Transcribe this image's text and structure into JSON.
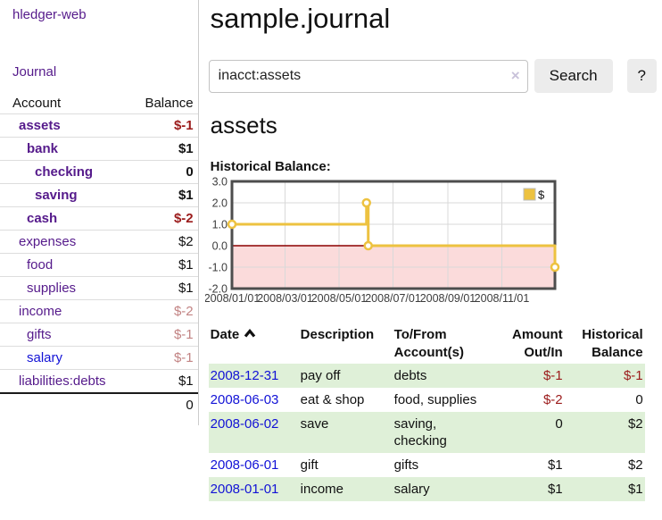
{
  "colors": {
    "link_purple": "#551a8b",
    "link_blue": "#1212d6",
    "negative_red": "#9b1b1b",
    "negative_red_muted": "#c28383",
    "stripe_green": "#dff0d8"
  },
  "sidebar": {
    "app_title": "hledger-web",
    "journal_link": "Journal",
    "accounts_table": {
      "headers": {
        "account": "Account",
        "balance": "Balance"
      },
      "rows": [
        {
          "name": "assets",
          "balance": "$-1",
          "depth": 1,
          "bold": true,
          "negative": true
        },
        {
          "name": "bank",
          "balance": "$1",
          "depth": 2,
          "bold": true
        },
        {
          "name": "checking",
          "balance": "0",
          "depth": 3,
          "bold": true
        },
        {
          "name": "saving",
          "balance": "$1",
          "depth": 3,
          "bold": true
        },
        {
          "name": "cash",
          "balance": "$-2",
          "depth": 2,
          "bold": true,
          "negative": true
        },
        {
          "name": "expenses",
          "balance": "$2",
          "depth": 1
        },
        {
          "name": "food",
          "balance": "$1",
          "depth": 2
        },
        {
          "name": "supplies",
          "balance": "$1",
          "depth": 2
        },
        {
          "name": "income",
          "balance": "$-2",
          "depth": 1,
          "negative": true,
          "muted": true
        },
        {
          "name": "gifts",
          "balance": "$-1",
          "depth": 2,
          "negative": true,
          "muted": true
        },
        {
          "name": "salary",
          "balance": "$-1",
          "depth": 2,
          "negative": true,
          "muted": true,
          "unvisited": true
        },
        {
          "name": "liabilities:debts",
          "balance": "$1",
          "depth": 1
        }
      ],
      "total": "0"
    }
  },
  "main": {
    "title": "sample.journal",
    "search": {
      "value": "inacct:assets",
      "clear_icon": "×",
      "button": "Search",
      "help_button": "?"
    },
    "account_heading": "assets",
    "chart_label": "Historical Balance:"
  },
  "chart_data": {
    "type": "line",
    "step": true,
    "title": "Historical Balance",
    "series": [
      {
        "name": "$",
        "color": "#edc240",
        "points": [
          [
            "2008-01-01",
            1
          ],
          [
            "2008-06-01",
            2
          ],
          [
            "2008-06-03",
            0
          ],
          [
            "2008-12-31",
            -1
          ]
        ]
      }
    ],
    "xlim": [
      "2008-01-01",
      "2008-12-31"
    ],
    "ylim": [
      -2.0,
      3.0
    ],
    "yticks": [
      3.0,
      2.0,
      1.0,
      0.0,
      -1.0,
      -2.0
    ],
    "xticks": [
      {
        "date": "2008-01-01",
        "label": "2008/01/01"
      },
      {
        "date": "2008-03-01",
        "label": "2008/03/01"
      },
      {
        "date": "2008-05-01",
        "label": "2008/05/01"
      },
      {
        "date": "2008-07-01",
        "label": "2008/07/01"
      },
      {
        "date": "2008-09-01",
        "label": "2008/09/01"
      },
      {
        "date": "2008-11-01",
        "label": "2008/11/01"
      }
    ],
    "grid": true,
    "legend_position": "top-right",
    "negative_region_color": "#fbdbdb",
    "zero_line_color": "#8b0000",
    "grid_color": "#d9d9d9",
    "border_color": "#4d4d4d"
  },
  "register": {
    "headers": [
      {
        "lines": [
          "Date"
        ],
        "align": "left",
        "sorted_asc": true
      },
      {
        "lines": [
          "Description"
        ],
        "align": "left"
      },
      {
        "lines": [
          "To/From",
          "Account(s)"
        ],
        "align": "left"
      },
      {
        "lines": [
          "Amount",
          "Out/In"
        ],
        "align": "right"
      },
      {
        "lines": [
          "Historical",
          "Balance"
        ],
        "align": "right"
      }
    ],
    "rows": [
      {
        "date": "2008-12-31",
        "description": "pay off",
        "accounts": [
          "debts"
        ],
        "amount": "$-1",
        "amount_negative": true,
        "balance": "$-1",
        "balance_negative": true
      },
      {
        "date": "2008-06-03",
        "description": "eat & shop",
        "accounts": [
          "food, supplies"
        ],
        "amount": "$-2",
        "amount_negative": true,
        "balance": "0"
      },
      {
        "date": "2008-06-02",
        "description": "save",
        "accounts": [
          "saving,",
          "checking"
        ],
        "amount": "0",
        "balance": "$2"
      },
      {
        "date": "2008-06-01",
        "description": "gift",
        "accounts": [
          "gifts"
        ],
        "amount": "$1",
        "balance": "$2"
      },
      {
        "date": "2008-01-01",
        "description": "income",
        "accounts": [
          "salary"
        ],
        "amount": "$1",
        "balance": "$1"
      }
    ]
  }
}
